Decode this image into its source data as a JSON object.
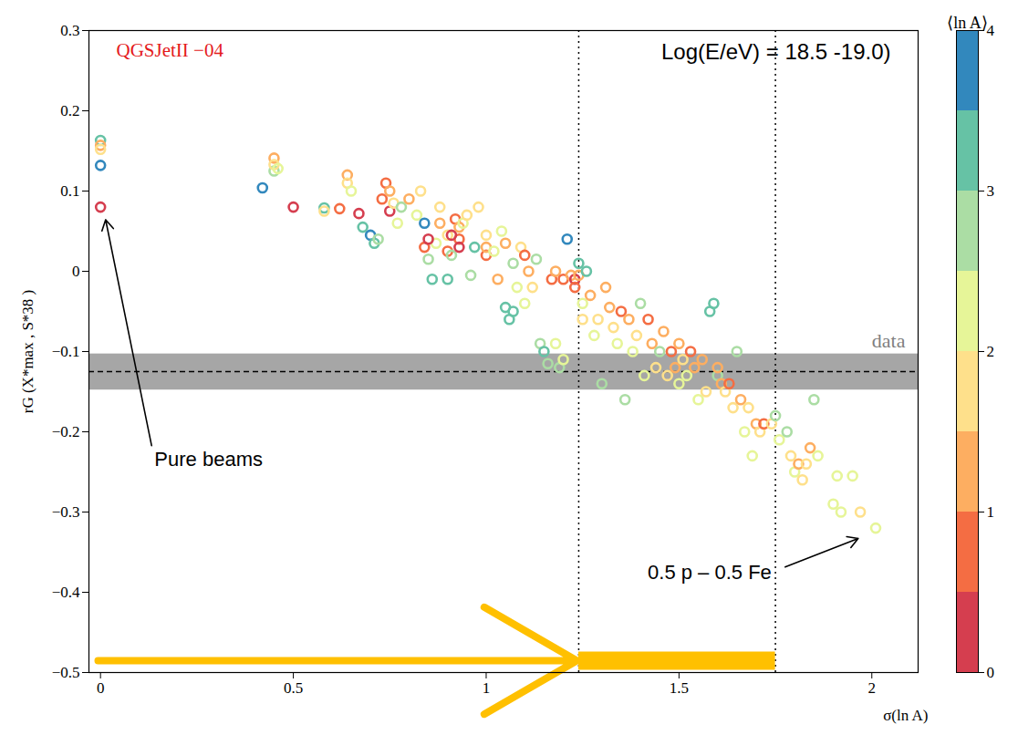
{
  "chart_data": {
    "type": "scatter",
    "title": "QGSJetII −04",
    "subtitle": "Log(E/eV) = 18.5 -19.0)",
    "x_label": "σ(ln A)",
    "y_label": "rG (X*max , S*38 )",
    "xlim": [
      -0.03,
      2.12
    ],
    "xticks": [
      0,
      0.5,
      1,
      1.5,
      2
    ],
    "ylim": [
      -0.5,
      0.3
    ],
    "yticks": [
      -0.5,
      -0.4,
      -0.3,
      -0.2,
      -0.1,
      0,
      0.1,
      0.2,
      0.3
    ],
    "marker": "circle_open",
    "grid": false,
    "x": [
      0,
      0,
      0,
      0,
      0,
      0.42,
      0.45,
      0.45,
      0.45,
      0.46,
      0.5,
      0.58,
      0.58,
      0.62,
      0.67,
      0.64,
      0.64,
      0.65,
      0.68,
      0.7,
      0.71,
      0.72,
      0.73,
      0.74,
      0.75,
      0.75,
      0.76,
      0.77,
      0.78,
      0.8,
      0.82,
      0.83,
      0.84,
      0.84,
      0.85,
      0.86,
      0.87,
      0.88,
      0.88,
      0.9,
      0.9,
      0.9,
      0.91,
      0.92,
      0.93,
      0.93,
      0.94,
      0.95,
      0.96,
      0.97,
      0.98,
      1.0,
      1.0,
      1.0,
      1.02,
      1.03,
      1.04,
      1.05,
      1.05,
      1.06,
      1.07,
      1.07,
      1.08,
      1.09,
      1.1,
      1.1,
      1.11,
      1.12,
      1.13,
      1.14,
      1.15,
      1.16,
      1.17,
      1.18,
      1.18,
      1.19,
      1.2,
      1.2,
      1.21,
      1.22,
      1.23,
      1.23,
      1.24,
      1.24,
      1.25,
      1.25,
      1.26,
      1.27,
      1.28,
      1.29,
      1.3,
      1.31,
      1.32,
      1.33,
      1.34,
      1.35,
      1.36,
      1.37,
      1.38,
      1.39,
      1.4,
      1.41,
      1.42,
      1.43,
      1.44,
      1.45,
      1.46,
      1.47,
      1.48,
      1.49,
      1.5,
      1.5,
      1.51,
      1.52,
      1.53,
      1.54,
      1.55,
      1.56,
      1.57,
      1.58,
      1.59,
      1.6,
      1.6,
      1.61,
      1.62,
      1.63,
      1.64,
      1.65,
      1.66,
      1.67,
      1.68,
      1.69,
      1.7,
      1.71,
      1.72,
      1.74,
      1.75,
      1.76,
      1.78,
      1.79,
      1.8,
      1.81,
      1.82,
      1.83,
      1.84,
      1.85,
      1.86,
      1.9,
      1.91,
      1.92,
      1.95,
      1.97,
      2.01,
      0.85,
      0.91,
      0.93
    ],
    "y": [
      0.163,
      0.157,
      0.152,
      0.132,
      0.08,
      0.104,
      0.125,
      0.141,
      0.133,
      0.128,
      0.08,
      0.079,
      0.075,
      0.078,
      0.072,
      0.12,
      0.11,
      0.1,
      0.055,
      0.045,
      0.035,
      0.04,
      0.09,
      0.11,
      0.075,
      0.1,
      0.085,
      0.06,
      0.08,
      0.09,
      0.07,
      0.1,
      0.06,
      0.03,
      0.015,
      -0.01,
      0.035,
      0.06,
      0.08,
      0.025,
      0.045,
      -0.01,
      0.02,
      0.065,
      0.04,
      0.055,
      0.06,
      0.07,
      -0.005,
      0.03,
      0.08,
      0.045,
      0.02,
      0.03,
      0.025,
      -0.01,
      0.05,
      0.035,
      -0.045,
      -0.06,
      -0.05,
      0.01,
      -0.02,
      0.03,
      0.02,
      -0.04,
      0.0,
      -0.02,
      0.015,
      -0.09,
      -0.1,
      -0.115,
      -0.01,
      0.0,
      -0.09,
      -0.12,
      -0.11,
      -0.01,
      0.04,
      -0.005,
      -0.01,
      -0.02,
      0.01,
      -0.005,
      -0.04,
      -0.06,
      0.0,
      -0.03,
      -0.08,
      -0.06,
      -0.14,
      -0.02,
      -0.045,
      -0.07,
      -0.09,
      -0.05,
      -0.16,
      -0.06,
      -0.1,
      -0.08,
      -0.04,
      -0.13,
      -0.06,
      -0.09,
      -0.12,
      -0.1,
      -0.075,
      -0.13,
      -0.1,
      -0.12,
      -0.14,
      -0.09,
      -0.11,
      -0.13,
      -0.1,
      -0.12,
      -0.16,
      -0.11,
      -0.15,
      -0.05,
      -0.04,
      -0.13,
      -0.12,
      -0.14,
      -0.15,
      -0.14,
      -0.17,
      -0.1,
      -0.16,
      -0.2,
      -0.17,
      -0.23,
      -0.19,
      -0.2,
      -0.19,
      -0.19,
      -0.18,
      -0.21,
      -0.2,
      -0.23,
      -0.25,
      -0.24,
      -0.26,
      -0.24,
      -0.22,
      -0.16,
      -0.23,
      -0.29,
      -0.255,
      -0.3,
      -0.255,
      -0.3,
      -0.32,
      0.04,
      0.045,
      0.03
    ],
    "mean_ln_A": [
      3.1,
      1.39,
      1.9,
      3.9,
      0,
      3.7,
      2.7,
      1.3,
      1.7,
      2.2,
      0.3,
      3.2,
      1.8,
      0.8,
      0.4,
      1.2,
      1.7,
      2.3,
      3.2,
      3.6,
      3.3,
      2.7,
      0.8,
      0.6,
      0.4,
      1.4,
      1.9,
      2.3,
      2.6,
      1.3,
      2.1,
      1.7,
      3.7,
      0.6,
      2.8,
      3.2,
      2.3,
      1.2,
      1.8,
      0.8,
      1.5,
      3.3,
      2.8,
      0.9,
      0.7,
      1.1,
      2.1,
      1.6,
      2.6,
      3.1,
      1.5,
      1.9,
      0.8,
      1.2,
      2.2,
      1.0,
      2.4,
      1.3,
      3.2,
      3.2,
      3.4,
      2.6,
      2.0,
      1.7,
      0.7,
      2.1,
      1.4,
      1.9,
      2.5,
      2.8,
      3.1,
      2.6,
      0.8,
      1.1,
      2.2,
      2.8,
      2.2,
      0.5,
      3.8,
      1.0,
      0.3,
      0.6,
      3.2,
      1.3,
      2.1,
      1.8,
      3.1,
      1.2,
      2.3,
      1.6,
      2.6,
      1.0,
      1.3,
      1.9,
      2.1,
      0.7,
      2.9,
      1.2,
      2.2,
      1.6,
      2.8,
      2.3,
      0.9,
      1.4,
      1.9,
      2.9,
      1.1,
      1.6,
      0.8,
      1.3,
      2.0,
      1.2,
      1.7,
      2.4,
      0.9,
      1.3,
      2.1,
      1.1,
      1.7,
      3.2,
      3.3,
      2.5,
      1.2,
      1.3,
      1.5,
      0.9,
      1.8,
      2.6,
      1.2,
      2.2,
      1.5,
      2.2,
      1.3,
      1.6,
      0.8,
      1.9,
      2.7,
      2.3,
      2.8,
      1.8,
      2.2,
      1.2,
      1.9,
      1.6,
      1.3,
      2.6,
      2.0,
      2.1,
      2.2,
      2.1,
      2.2,
      1.8,
      2.0,
      0.4,
      0.2,
      0.4
    ],
    "colorbar": {
      "label": "⟨ln A⟩",
      "range": [
        0,
        4
      ],
      "ticks": [
        0,
        1,
        2,
        3,
        4
      ],
      "colors": [
        "#d53e4f",
        "#f46d43",
        "#fdae61",
        "#fee08b",
        "#e6f598",
        "#abdda4",
        "#66c2a5",
        "#3288bd"
      ]
    },
    "data_band": {
      "label": "data",
      "value": -0.125,
      "low": -0.148,
      "high": -0.103
    },
    "dotted_lines": [
      1.24,
      1.75
    ],
    "annotations": [
      {
        "text": "Pure beams",
        "x": 0.14,
        "y": -0.235,
        "arrow_to": [
          0.01,
          0.072
        ]
      },
      {
        "text": "0.5 p – 0.5 Fe",
        "x": 1.74,
        "y": -0.375,
        "arrow_to": [
          1.98,
          -0.33
        ]
      }
    ]
  }
}
